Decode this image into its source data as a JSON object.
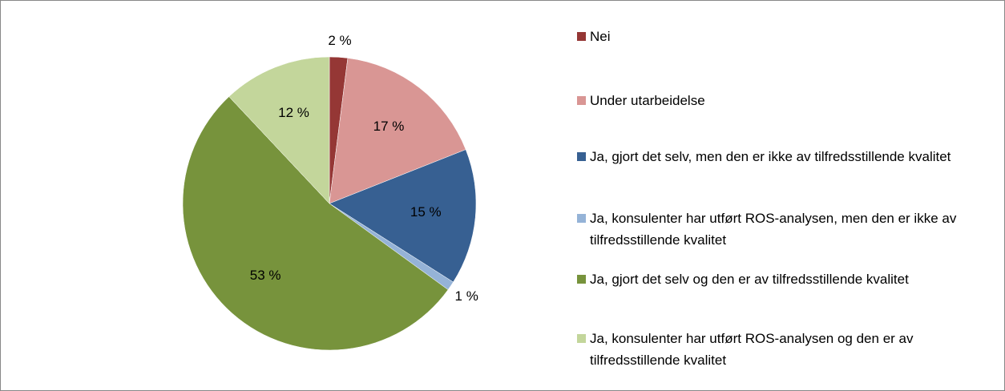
{
  "chart_data": {
    "type": "pie",
    "categories": [
      "Nei",
      "Under utarbeidelse",
      "Ja, gjort det selv, men den er ikke av tilfredsstillende kvalitet",
      "Ja, konsulenter har utført ROS-analysen, men den er ikke av tilfredsstillende kvalitet",
      "Ja, gjort det selv og den er av tilfredsstillende kvalitet",
      "Ja, konsulenter har utført ROS-analysen og den er av tilfredsstillende kvalitet"
    ],
    "values": [
      2,
      17,
      15,
      1,
      53,
      12
    ],
    "value_labels": [
      "2 %",
      "17 %",
      "15 %",
      "1 %",
      "53 %",
      "12 %"
    ],
    "colors": [
      "#953735",
      "#d99694",
      "#376092",
      "#95b3d7",
      "#77933c",
      "#c3d69b"
    ],
    "legend": "right"
  }
}
